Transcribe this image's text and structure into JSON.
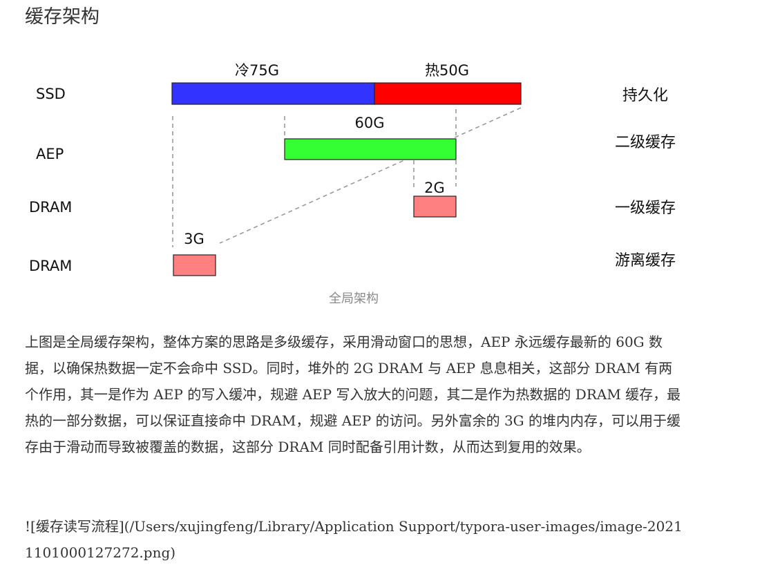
{
  "heading": "缓存架构",
  "diagram": {
    "rows": {
      "ssd": "SSD",
      "aep": "AEP",
      "dram1": "DRAM",
      "dram2": "DRAM"
    },
    "segments": {
      "cold": "冷75G",
      "hot": "热50G",
      "aep": "60G",
      "dram1": "2G",
      "dram2": "3G"
    },
    "tiers": {
      "persist": "持久化",
      "level2": "二级缓存",
      "level1": "一级缓存",
      "free": "游离缓存"
    },
    "colors": {
      "cold": "#3333ff",
      "hot": "#ff0000",
      "aep": "#33ff33",
      "dram": "#ff8080",
      "border": "#222222",
      "dash": "#999999"
    }
  },
  "caption": "全局架构",
  "paragraph": "上图是全局缓存架构，整体方案的思路是多级缓存，采用滑动窗口的思想，AEP 永远缓存最新的 60G 数据，以确保热数据一定不会命中 SSD。同时，堆外的 2G DRAM 与 AEP 息息相关，这部分 DRAM 有两个作用，其一是作为 AEP 的写入缓冲，规避 AEP 写入放大的问题，其二是作为热数据的 DRAM 缓存，最热的一部分数据，可以保证直接命中 DRAM，规避 AEP 的访问。另外富余的 3G 的堆内内存，可以用于缓存由于滑动而导致被覆盖的数据，这部分 DRAM 同时配备引用计数，从而达到复用的效果。",
  "image_markdown": "![缓存读写流程](/Users/xujingfeng/Library/Application Support/typora-user-images/image-20211101000127272.png)"
}
